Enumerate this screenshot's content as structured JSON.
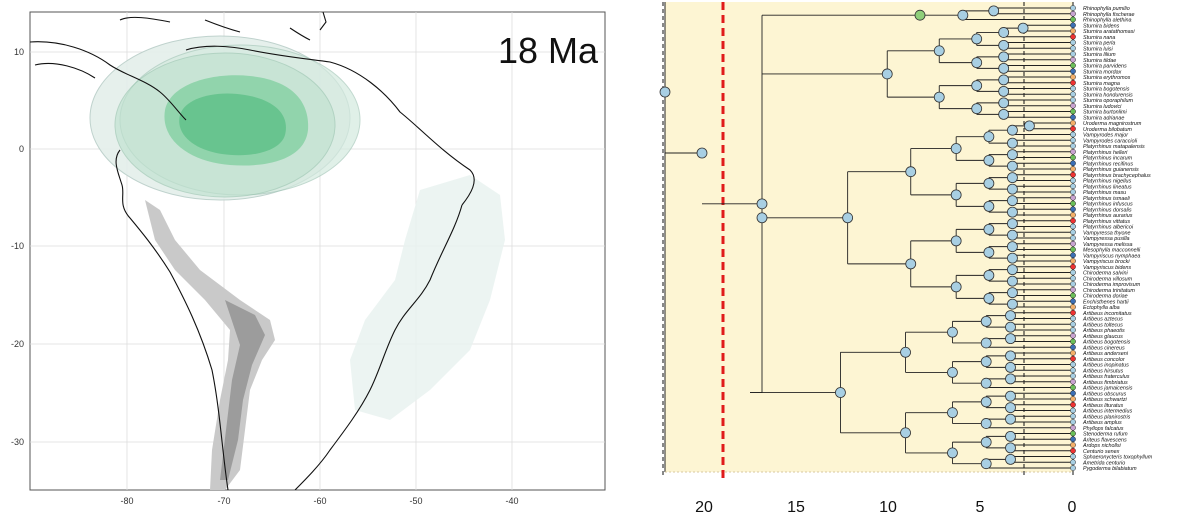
{
  "map": {
    "time_label": "18 Ma",
    "lat_ticks": [
      "10",
      "0",
      "-10",
      "-20",
      "-30"
    ],
    "lon_ticks": [
      "-80",
      "-70",
      "-60",
      "-50",
      "-40"
    ]
  },
  "tree": {
    "x_ticks": [
      "20",
      "15",
      "10",
      "5",
      "0"
    ],
    "tips": [
      "Rhinophylla pumilio",
      "Rhinophylla fischerae",
      "Rhinophylla alethina",
      "Sturnira bidens",
      "Sturnira aratathomasi",
      "Sturnira nana",
      "Sturnira perla",
      "Sturnira luisi",
      "Sturnira lilium",
      "Sturnira tildae",
      "Sturnira parvidens",
      "Sturnira mordax",
      "Sturnira erythromos",
      "Sturnira magna",
      "Sturnira bogotensis",
      "Sturnira hondurensis",
      "Sturnira oporaphilum",
      "Sturnira ludovici",
      "Sturnira burtonlimi",
      "Sturnira adrianae",
      "Uroderma magnirostrum",
      "Uroderma bilobatum",
      "Vampyrodes major",
      "Vampyrodes caraccioli",
      "Platyrrhinus matapalensis",
      "Platyrrhinus helleri",
      "Platyrrhinus incarum",
      "Platyrrhinus recifinus",
      "Platyrrhinus guianensis",
      "Platyrrhinus brachycephalus",
      "Platyrrhinus nigellus",
      "Platyrrhinus lineatus",
      "Platyrrhinus masu",
      "Platyrrhinus ismaeli",
      "Platyrrhinus infuscus",
      "Platyrrhinus dorsalis",
      "Platyrrhinus aurarius",
      "Platyrrhinus vittatus",
      "Platyrrhinus albericoi",
      "Vampyressa thyone",
      "Vampyressa pusilla",
      "Vampyressa melissa",
      "Mesophylla macconnelli",
      "Vampyriscus nymphaea",
      "Vampyriscus brocki",
      "Vampyriscus bidens",
      "Chiroderma salvini",
      "Chiroderma villosum",
      "Chiroderma improvisum",
      "Chiroderma trinitatum",
      "Chiroderma doriae",
      "Enchisthenes hartii",
      "Ectophylla alba",
      "Artibeus incomitatus",
      "Artibeus aztecus",
      "Artibeus toltecus",
      "Artibeus phaeotis",
      "Artibeus glaucus",
      "Artibeus bogotensis",
      "Artibeus cinereus",
      "Artibeus anderseni",
      "Artibeus concolor",
      "Artibeus inopinatus",
      "Artibeus hirsutus",
      "Artibeus fraterculus",
      "Artibeus fimbriatus",
      "Artibeus jamaicensis",
      "Artibeus obscurus",
      "Artibeus schwartzi",
      "Artibeus lituratus",
      "Artibeus intermedius",
      "Artibeus planirostris",
      "Artibeus amplus",
      "Phyllops falcatus",
      "Stenoderma rufum",
      "Ariteus flavescens",
      "Ardops nichollsi",
      "Centurio senex",
      "Sphaeronycteris toxophyllum",
      "Ametrida centurio",
      "Pygoderma bilabiatum"
    ]
  }
}
